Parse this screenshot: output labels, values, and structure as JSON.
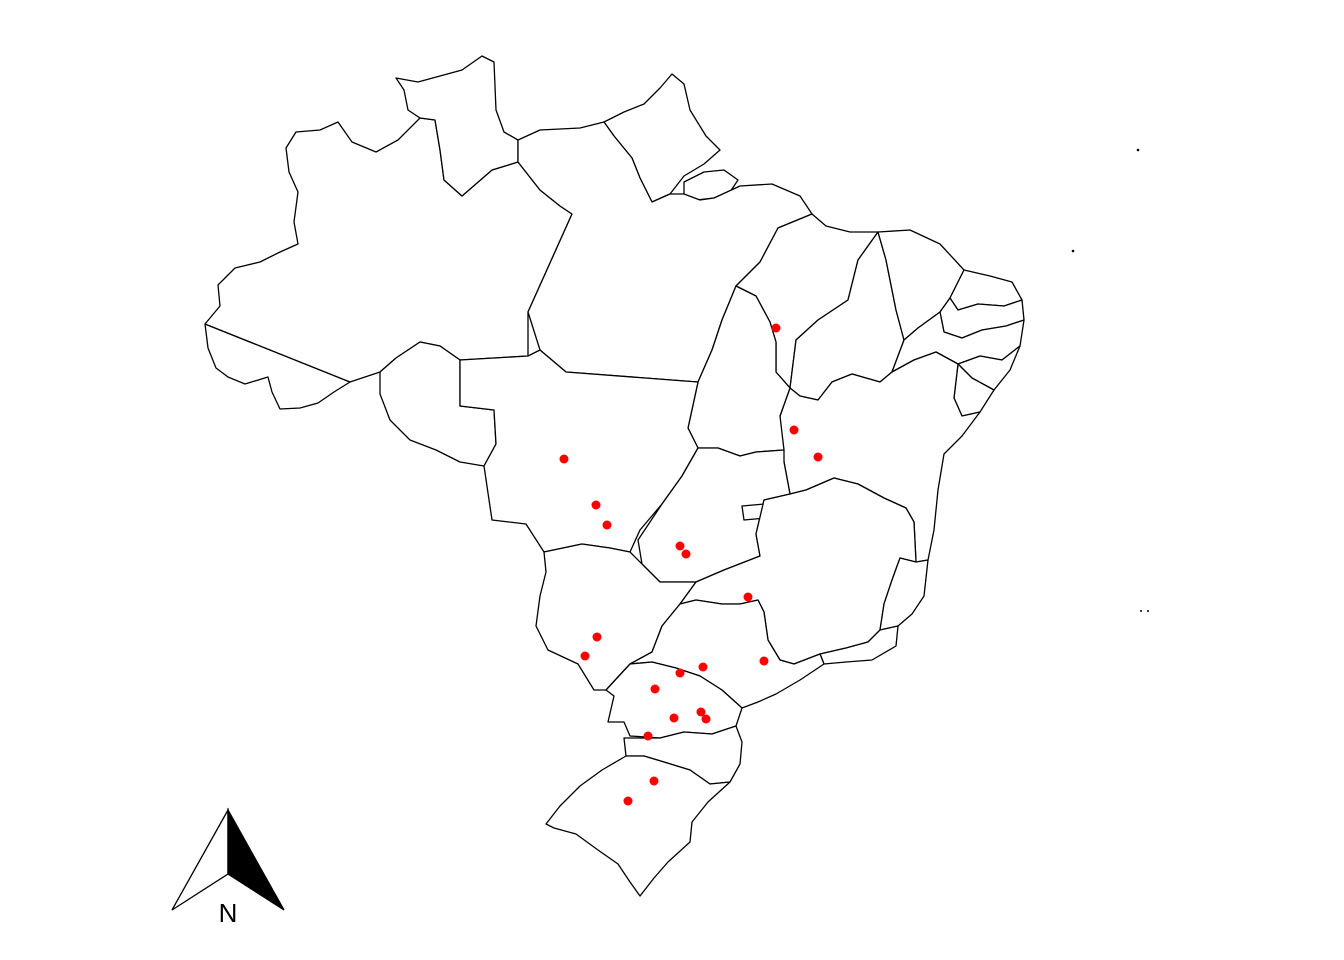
{
  "map": {
    "background_color": "#ffffff",
    "boundary_color": "#000000",
    "point_color": "#ff0000",
    "states": [
      "AC",
      "AM",
      "RR",
      "AP",
      "PA",
      "MA",
      "PI",
      "CE",
      "RN",
      "PB",
      "PE",
      "AL",
      "SE",
      "BA",
      "TO",
      "RO",
      "MT",
      "GO",
      "DF",
      "MS",
      "MG",
      "ES",
      "RJ",
      "SP",
      "PR",
      "SC",
      "RS"
    ]
  },
  "points": [
    {
      "id": "p1"
    },
    {
      "id": "p2"
    },
    {
      "id": "p3"
    },
    {
      "id": "p4"
    },
    {
      "id": "p5"
    },
    {
      "id": "p6"
    },
    {
      "id": "p7"
    },
    {
      "id": "p8"
    },
    {
      "id": "p9"
    },
    {
      "id": "p10"
    },
    {
      "id": "p11"
    },
    {
      "id": "p12"
    },
    {
      "id": "p13"
    },
    {
      "id": "p14"
    },
    {
      "id": "p15"
    },
    {
      "id": "p16"
    },
    {
      "id": "p17"
    },
    {
      "id": "p18"
    },
    {
      "id": "p19"
    },
    {
      "id": "p20"
    },
    {
      "id": "p21"
    },
    {
      "id": "p22"
    },
    {
      "id": "p23"
    }
  ],
  "north_arrow": {
    "label": "N",
    "icon": "north-arrow-icon"
  }
}
